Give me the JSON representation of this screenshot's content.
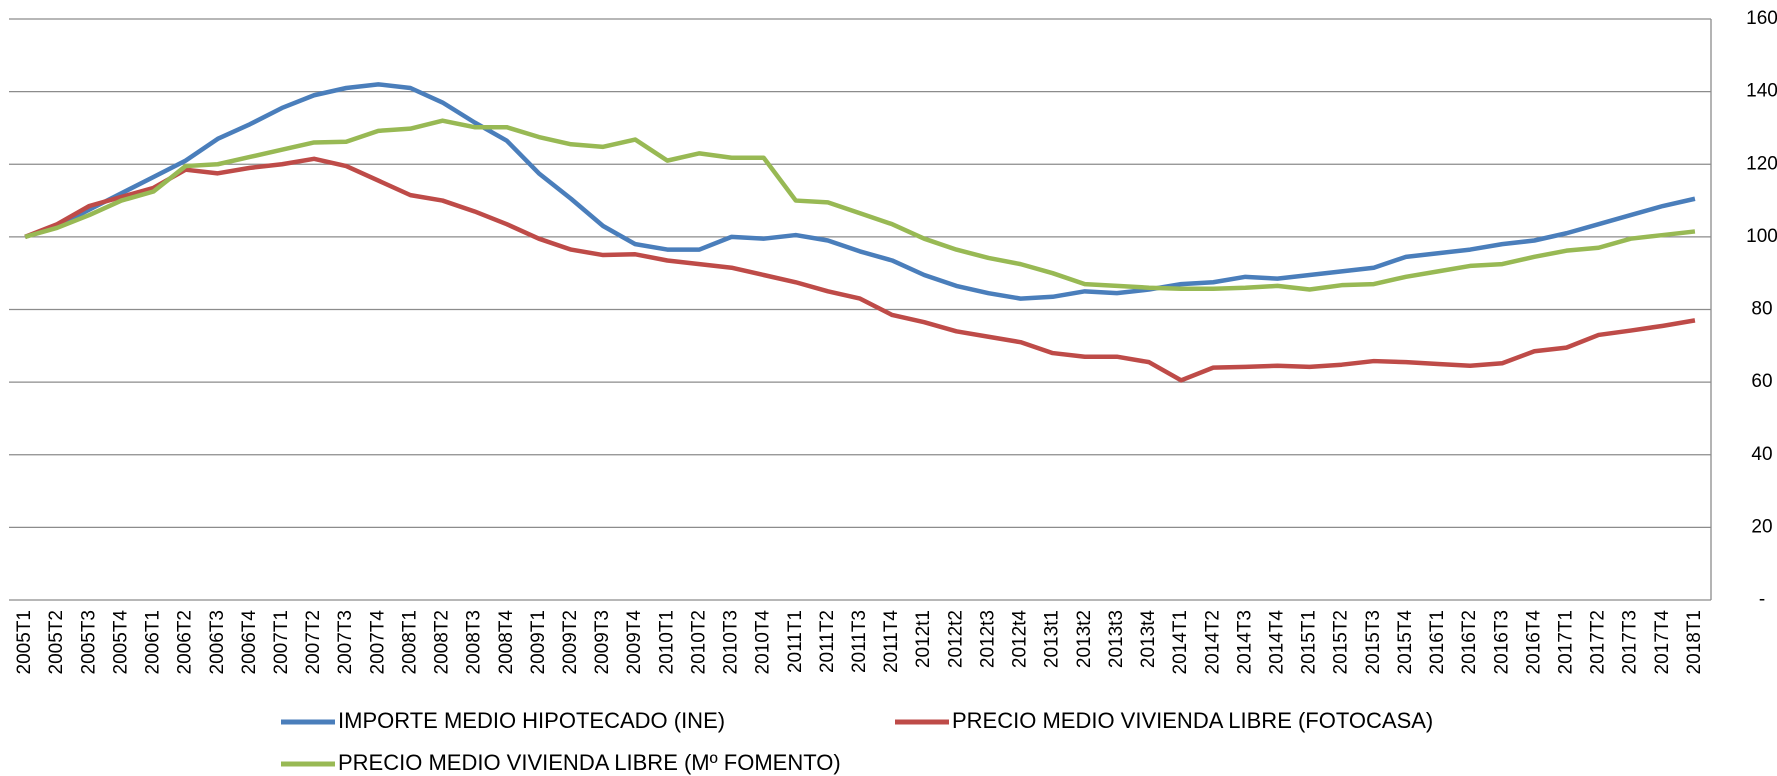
{
  "chart_data": {
    "type": "line",
    "categories": [
      "2005T1",
      "2005T2",
      "2005T3",
      "2005T4",
      "2006T1",
      "2006T2",
      "2006T3",
      "2006T4",
      "2007T1",
      "2007T2",
      "2007T3",
      "2007T4",
      "2008T1",
      "2008T2",
      "2008T3",
      "2008T4",
      "2009T1",
      "2009T2",
      "2009T3",
      "2009T4",
      "2010T1",
      "2010T2",
      "2010T3",
      "2010T4",
      "2011T1",
      "2011T2",
      "2011T3",
      "2011T4",
      "2012t1",
      "2012t2",
      "2012t3",
      "2012t4",
      "2013t1",
      "2013t2",
      "2013t3",
      "2013t4",
      "2014T1",
      "2014T2",
      "2014T3",
      "2014T4",
      "2015T1",
      "2015T2",
      "2015T3",
      "2015T4",
      "2016T1",
      "2016T2",
      "2016T3",
      "2016T4",
      "2017T1",
      "2017T2",
      "2017T3",
      "2017T4",
      "2018T1"
    ],
    "series": [
      {
        "name": "IMPORTE MEDIO HIPOTECADO (INE)",
        "color": "#4a7ebb",
        "values": [
          100,
          103,
          107.5,
          112,
          116.5,
          121,
          127,
          131,
          135.5,
          139,
          141,
          142,
          141,
          137,
          131.5,
          126.5,
          117.5,
          110.5,
          103,
          98,
          96.5,
          96.5,
          100,
          99.5,
          100.5,
          99,
          96,
          93.5,
          89.5,
          86.5,
          84.5,
          83,
          83.5,
          85,
          84.5,
          85.5,
          87,
          87.5,
          89,
          88.5,
          89.5,
          90.5,
          91.5,
          94.5,
          95.5,
          96.5,
          98,
          99,
          101,
          103.5,
          106,
          108.5,
          110.5
        ]
      },
      {
        "name": "PRECIO MEDIO VIVIENDA LIBRE (FOTOCASA)",
        "color": "#be4b48",
        "values": [
          100,
          103.5,
          108.5,
          111,
          113.5,
          118.5,
          117.5,
          119,
          120,
          121.5,
          119.5,
          115.5,
          111.5,
          110,
          107,
          103.5,
          99.5,
          96.5,
          95,
          95.2,
          93.5,
          92.5,
          91.5,
          89.5,
          87.5,
          85,
          83,
          78.5,
          76.5,
          74,
          72.5,
          71,
          68,
          67,
          67,
          65.5,
          60.5,
          64,
          64.2,
          64.5,
          64.2,
          64.8,
          65.8,
          65.5,
          65,
          64.5,
          65.2,
          68.5,
          69.5,
          73,
          74.2,
          75.5,
          77
        ]
      },
      {
        "name": "PRECIO MEDIO VIVIENDA LIBRE (Mº FOMENTO)",
        "color": "#98b954",
        "values": [
          100,
          102.5,
          106,
          110,
          112.5,
          119.5,
          120,
          122,
          124,
          126,
          126.2,
          129.2,
          129.8,
          132,
          130.2,
          130.2,
          127.5,
          125.5,
          124.8,
          126.8,
          121,
          123,
          121.8,
          121.8,
          110,
          109.5,
          106.5,
          103.5,
          99.5,
          96.5,
          94.2,
          92.5,
          90,
          87,
          86.5,
          86,
          85.7,
          85.7,
          86,
          86.5,
          85.5,
          86.7,
          87,
          89,
          90.5,
          92,
          92.5,
          94.5,
          96.2,
          97,
          99.5,
          100.5,
          101.5
        ]
      }
    ],
    "ylim": [
      0,
      160
    ],
    "yticks": [
      {
        "value": 0,
        "label": "-"
      },
      20,
      40,
      60,
      80,
      100,
      120,
      140,
      160
    ],
    "grid": true,
    "legend": "bottom"
  }
}
